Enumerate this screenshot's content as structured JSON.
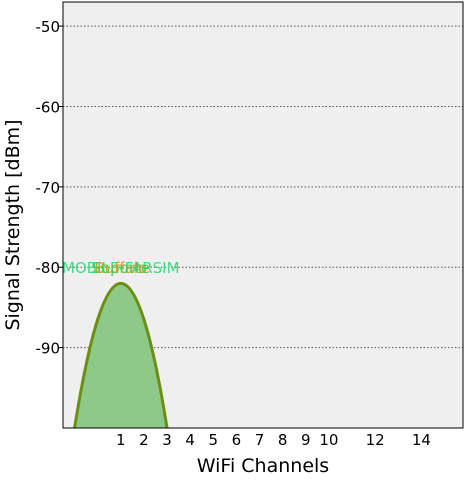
{
  "chart_data": {
    "type": "area",
    "title": "",
    "xlabel": "WiFi Channels",
    "ylabel": "Signal Strength [dBm]",
    "xlim": [
      -1.5,
      15.8
    ],
    "ylim": [
      -100,
      -47
    ],
    "x_ticks": [
      {
        "value": 1,
        "label": "1"
      },
      {
        "value": 2,
        "label": "2"
      },
      {
        "value": 3,
        "label": "3"
      },
      {
        "value": 4,
        "label": "4"
      },
      {
        "value": 5,
        "label": "5"
      },
      {
        "value": 6,
        "label": "6"
      },
      {
        "value": 7,
        "label": "7"
      },
      {
        "value": 8,
        "label": "8"
      },
      {
        "value": 9,
        "label": "9"
      },
      {
        "value": 10,
        "label": "10"
      },
      {
        "value": 12,
        "label": "12"
      },
      {
        "value": 14,
        "label": "14"
      }
    ],
    "y_ticks": [
      {
        "value": -50,
        "label": "-50"
      },
      {
        "value": -60,
        "label": "-60"
      },
      {
        "value": -70,
        "label": "-70"
      },
      {
        "value": -80,
        "label": "-80"
      },
      {
        "value": -90,
        "label": "-90"
      }
    ],
    "grid": "horizontal-dotted",
    "background_color": "#efefef",
    "series": [
      {
        "channel": 1,
        "peak": -82,
        "label": "",
        "fill_color": "#8fc98a",
        "line_color": "#6b8f12"
      }
    ],
    "network_labels": [
      {
        "text": "MOBILE-FARSIM",
        "channel": 1,
        "level": -80,
        "color": "#3ddc84"
      },
      {
        "text": "Buffalo",
        "channel": 1,
        "level": -80,
        "color": "#d49d25"
      },
      {
        "text": "Soporte",
        "channel": 1,
        "level": -80,
        "color": "#52c95b"
      }
    ]
  }
}
